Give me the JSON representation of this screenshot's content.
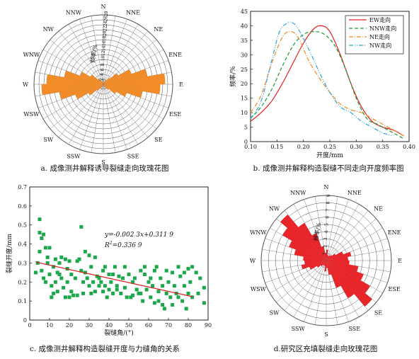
{
  "chart_data": [
    {
      "id": "a",
      "type": "rose",
      "caption": "a. 成像测井解释诱导裂缝走向玫瑰花图",
      "radial_label": "频率/%",
      "radial_ticks": [
        "2",
        "4",
        "6",
        "8",
        "10",
        "12",
        "14",
        "16",
        "18",
        "20",
        "22",
        "24",
        "26",
        "28"
      ],
      "rmax": 28,
      "directions": [
        "N",
        "NNE",
        "NE",
        "ENE",
        "E",
        "ESE",
        "SE",
        "SSE",
        "S",
        "SSW",
        "SW",
        "WSW",
        "W",
        "WNW",
        "NW",
        "NNW"
      ],
      "bin_width_deg": 10,
      "color": "#f28c28",
      "bins": [
        {
          "center": 5,
          "value": 0.6
        },
        {
          "center": 15,
          "value": 0.8
        },
        {
          "center": 25,
          "value": 1.2
        },
        {
          "center": 35,
          "value": 1.8
        },
        {
          "center": 45,
          "value": 3.5
        },
        {
          "center": 55,
          "value": 7
        },
        {
          "center": 65,
          "value": 12
        },
        {
          "center": 75,
          "value": 18
        },
        {
          "center": 85,
          "value": 25
        },
        {
          "center": 95,
          "value": 23
        },
        {
          "center": 105,
          "value": 16
        },
        {
          "center": 115,
          "value": 10
        },
        {
          "center": 125,
          "value": 6
        },
        {
          "center": 135,
          "value": 3
        },
        {
          "center": 145,
          "value": 1.8
        },
        {
          "center": 155,
          "value": 1
        },
        {
          "center": 165,
          "value": 0.6
        },
        {
          "center": 175,
          "value": 0.5
        }
      ]
    },
    {
      "id": "b",
      "type": "line",
      "caption": "b. 成像测井解释构造裂缝不同走向开度频率图",
      "xlabel": "开度/mm",
      "ylabel": "频率/%",
      "xlim": [
        0.1,
        0.4
      ],
      "ylim": [
        0,
        45
      ],
      "xticks": [
        "0.10",
        "0.15",
        "0.20",
        "0.25",
        "0.30",
        "0.35",
        "0.40"
      ],
      "yticks": [
        "0",
        "5",
        "10",
        "15",
        "20",
        "25",
        "30",
        "35",
        "40",
        "45"
      ],
      "series": [
        {
          "name": "EW走向",
          "color": "#e02020",
          "dash": "",
          "x": [
            0.1,
            0.12,
            0.14,
            0.16,
            0.18,
            0.2,
            0.22,
            0.235,
            0.25,
            0.27,
            0.29,
            0.31,
            0.33,
            0.35,
            0.37,
            0.39
          ],
          "y": [
            7,
            10,
            14,
            20,
            27,
            34,
            39,
            40,
            38,
            30,
            20,
            12,
            7,
            5,
            4,
            2
          ]
        },
        {
          "name": "NNW走向",
          "color": "#1a9a3a",
          "dash": "5,3",
          "x": [
            0.1,
            0.12,
            0.14,
            0.16,
            0.18,
            0.2,
            0.22,
            0.24,
            0.26,
            0.28,
            0.3,
            0.32,
            0.34,
            0.36,
            0.38,
            0.39
          ],
          "y": [
            8,
            12,
            18,
            26,
            33,
            37,
            38,
            37,
            33,
            25,
            15,
            8,
            6,
            4,
            2,
            1
          ]
        },
        {
          "name": "NE走向",
          "color": "#f08a24",
          "dash": "6,2,1,2",
          "x": [
            0.1,
            0.12,
            0.14,
            0.16,
            0.175,
            0.19,
            0.21,
            0.23,
            0.25,
            0.27,
            0.29,
            0.31,
            0.33,
            0.35,
            0.37,
            0.39
          ],
          "y": [
            10,
            16,
            27,
            36,
            38,
            36,
            28,
            22,
            17,
            13,
            11,
            10,
            8,
            6,
            4,
            2
          ]
        },
        {
          "name": "NW走向",
          "color": "#2aa6d8",
          "dash": "6,2,1,2,1,2",
          "x": [
            0.1,
            0.12,
            0.14,
            0.155,
            0.17,
            0.18,
            0.19,
            0.21,
            0.23,
            0.25,
            0.27,
            0.29,
            0.31,
            0.33,
            0.35,
            0.37
          ],
          "y": [
            8,
            14,
            28,
            38,
            41,
            41,
            39,
            32,
            24,
            17,
            12,
            10,
            7,
            5,
            3,
            2
          ]
        }
      ]
    },
    {
      "id": "c",
      "type": "scatter",
      "caption": "c. 成像测井解释构造裂缝开度与力缝角的关系",
      "xlabel": "裂缝角/(°)",
      "ylabel": "裂缝开度/mm",
      "xlim": [
        0,
        90
      ],
      "ylim": [
        0,
        0.7
      ],
      "xticks": [
        "0",
        "10",
        "20",
        "30",
        "40",
        "50",
        "60",
        "70",
        "80",
        "90"
      ],
      "yticks": [
        "0",
        "0.1",
        "0.2",
        "0.3",
        "0.4",
        "0.5",
        "0.6",
        "0.7"
      ],
      "equation": "y=-0.002 3x+0.311 9",
      "r2_prefix": "R",
      "r2_sup": "2",
      "r2_value": "=0.336 9",
      "marker_color": "#1aa84a",
      "fit_color": "#d02020",
      "fit": {
        "slope": -0.0023,
        "intercept": 0.3119,
        "x_range": [
          3,
          82
        ]
      },
      "points": [
        [
          3,
          0.25
        ],
        [
          4,
          0.3
        ],
        [
          5,
          0.36
        ],
        [
          5,
          0.53
        ],
        [
          5,
          0.46
        ],
        [
          6,
          0.43
        ],
        [
          6,
          0.26
        ],
        [
          7,
          0.45
        ],
        [
          7,
          0.22
        ],
        [
          8,
          0.38
        ],
        [
          8,
          0.2
        ],
        [
          9,
          0.3
        ],
        [
          9,
          0.33
        ],
        [
          10,
          0.38
        ],
        [
          10,
          0.24
        ],
        [
          11,
          0.18
        ],
        [
          11,
          0.12
        ],
        [
          12,
          0.28
        ],
        [
          12,
          0.14
        ],
        [
          13,
          0.32
        ],
        [
          13,
          0.2
        ],
        [
          14,
          0.25
        ],
        [
          14,
          0.15
        ],
        [
          15,
          0.3
        ],
        [
          15,
          0.24
        ],
        [
          16,
          0.33
        ],
        [
          16,
          0.22
        ],
        [
          17,
          0.17
        ],
        [
          18,
          0.32
        ],
        [
          18,
          0.12
        ],
        [
          19,
          0.27
        ],
        [
          19,
          0.2
        ],
        [
          20,
          0.31
        ],
        [
          20,
          0.12
        ],
        [
          21,
          0.24
        ],
        [
          21,
          0.15
        ],
        [
          22,
          0.13
        ],
        [
          23,
          0.22
        ],
        [
          24,
          0.31
        ],
        [
          24,
          0.13
        ],
        [
          25,
          0.32
        ],
        [
          26,
          0.49
        ],
        [
          26,
          0.26
        ],
        [
          27,
          0.2
        ],
        [
          27,
          0.14
        ],
        [
          28,
          0.36
        ],
        [
          28,
          0.25
        ],
        [
          29,
          0.22
        ],
        [
          30,
          0.34
        ],
        [
          30,
          0.18
        ],
        [
          31,
          0.28
        ],
        [
          31,
          0.14
        ],
        [
          32,
          0.2
        ],
        [
          33,
          0.15
        ],
        [
          33,
          0.33
        ],
        [
          34,
          0.23
        ],
        [
          35,
          0.18
        ],
        [
          35,
          0.22
        ],
        [
          36,
          0.2
        ],
        [
          37,
          0.15
        ],
        [
          37,
          0.26
        ],
        [
          38,
          0.28
        ],
        [
          38,
          0.18
        ],
        [
          39,
          0.12
        ],
        [
          40,
          0.24
        ],
        [
          40,
          0.16
        ],
        [
          41,
          0.2
        ],
        [
          42,
          0.14
        ],
        [
          42,
          0.24
        ],
        [
          43,
          0.28
        ],
        [
          44,
          0.18
        ],
        [
          44,
          0.16
        ],
        [
          45,
          0.23
        ],
        [
          46,
          0.14
        ],
        [
          47,
          0.22
        ],
        [
          48,
          0.28
        ],
        [
          48,
          0.17
        ],
        [
          49,
          0.12
        ],
        [
          50,
          0.24
        ],
        [
          51,
          0.12
        ],
        [
          52,
          0.2
        ],
        [
          52,
          0.13
        ],
        [
          53,
          0.22
        ],
        [
          54,
          0.16
        ],
        [
          55,
          0.14
        ],
        [
          56,
          0.26
        ],
        [
          56,
          0.14
        ],
        [
          57,
          0.1
        ],
        [
          58,
          0.28
        ],
        [
          58,
          0.24
        ],
        [
          59,
          0.16
        ],
        [
          60,
          0.2
        ],
        [
          61,
          0.22
        ],
        [
          61,
          0.12
        ],
        [
          62,
          0.18
        ],
        [
          63,
          0.26
        ],
        [
          63,
          0.09
        ],
        [
          64,
          0.28
        ],
        [
          65,
          0.15
        ],
        [
          65,
          0.1
        ],
        [
          66,
          0.22
        ],
        [
          67,
          0.08
        ],
        [
          67,
          0.18
        ],
        [
          68,
          0.06
        ],
        [
          69,
          0.26
        ],
        [
          69,
          0.14
        ],
        [
          70,
          0.2
        ],
        [
          71,
          0.12
        ],
        [
          72,
          0.25
        ],
        [
          72,
          0.08
        ],
        [
          73,
          0.18
        ],
        [
          74,
          0.14
        ],
        [
          75,
          0.28
        ],
        [
          75,
          0.12
        ],
        [
          76,
          0.23
        ],
        [
          77,
          0.1
        ],
        [
          78,
          0.25
        ],
        [
          78,
          0.18
        ],
        [
          79,
          0.06
        ],
        [
          80,
          0.27
        ],
        [
          80,
          0.14
        ],
        [
          81,
          0.2
        ],
        [
          82,
          0.12
        ],
        [
          82,
          0.28
        ],
        [
          84,
          0.25
        ],
        [
          85,
          0.14
        ],
        [
          86,
          0.22
        ],
        [
          88,
          0.17
        ],
        [
          88,
          0.09
        ]
      ]
    },
    {
      "id": "d",
      "type": "rose",
      "caption": "d.研究区充填裂缝走向玫瑰花图",
      "radial_label": "频率/%",
      "radial_ticks": [
        "1",
        "2",
        "3",
        "4",
        "5",
        "6",
        "7",
        "8",
        "9"
      ],
      "rmax": 9,
      "directions": [
        "N",
        "NNE",
        "NE",
        "ENE",
        "E",
        "ESE",
        "SE",
        "SSE",
        "S",
        "SSW",
        "SW",
        "WSW",
        "W",
        "WNW",
        "NW",
        "NNW"
      ],
      "bin_width_deg": 10,
      "color": "#e8262a",
      "bins": [
        {
          "center": 5,
          "value": 1.5
        },
        {
          "center": 15,
          "value": 0.8
        },
        {
          "center": 25,
          "value": 0.7
        },
        {
          "center": 35,
          "value": 0.8
        },
        {
          "center": 45,
          "value": 1
        },
        {
          "center": 55,
          "value": 1.5
        },
        {
          "center": 65,
          "value": 2.5
        },
        {
          "center": 75,
          "value": 3.5
        },
        {
          "center": 85,
          "value": 3
        },
        {
          "center": 95,
          "value": 3.2
        },
        {
          "center": 105,
          "value": 4.5
        },
        {
          "center": 115,
          "value": 5.5
        },
        {
          "center": 125,
          "value": 7
        },
        {
          "center": 135,
          "value": 8.3
        },
        {
          "center": 145,
          "value": 6
        },
        {
          "center": 155,
          "value": 4
        },
        {
          "center": 165,
          "value": 2
        },
        {
          "center": 175,
          "value": 1
        }
      ]
    }
  ]
}
